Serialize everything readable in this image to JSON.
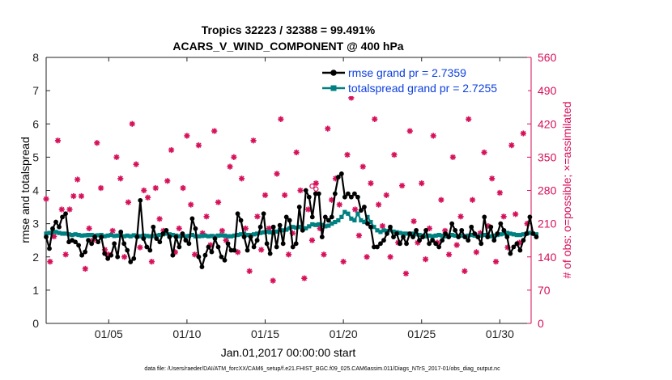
{
  "chart_data": {
    "type": "line",
    "title": "Tropics 32223 / 32388 = 99.491%",
    "subtitle": "ACARS_V_WIND_COMPONENT @ 400 hPa",
    "xlabel": "Jan.01,2017 00:00:00 start",
    "ylabel": "rmse and totalspread",
    "ylabel_right": "# of obs: o=possible; ×=assimilated",
    "footnote": "data file: /Users/raeder/DAI/ATM_forcXX/CAM6_setup/f.e21.FHIST_BGC.f09_025.CAM6assim.011/Diags_NTrS_2017-01/obs_diag_output.nc",
    "xlim": [
      1,
      32
    ],
    "ylim": [
      0,
      8
    ],
    "ylim_right": [
      0,
      560
    ],
    "x_ticks": [
      5,
      10,
      15,
      20,
      25,
      30
    ],
    "x_tick_labels": [
      "01/05",
      "01/10",
      "01/15",
      "01/20",
      "01/25",
      "01/30"
    ],
    "y_ticks": [
      0,
      1,
      2,
      3,
      4,
      5,
      6,
      7,
      8
    ],
    "y_tick_labels": [
      "0",
      "1",
      "2",
      "3",
      "4",
      "5",
      "6",
      "7",
      "8"
    ],
    "y_ticks_right": [
      0,
      70,
      140,
      210,
      280,
      350,
      420,
      490,
      560
    ],
    "y_tick_labels_right": [
      "0",
      "70",
      "140",
      "210",
      "280",
      "350",
      "420",
      "490",
      "560"
    ],
    "colors": {
      "rmse": "#000000",
      "spread": "#008080",
      "obs": "#d6105a",
      "legend_text": "#0d3fe0"
    },
    "series": [
      {
        "name": "rmse grand pr = 2.7359",
        "values": [
          2.6,
          2.25,
          2.85,
          3.05,
          2.9,
          3.2,
          3.3,
          2.45,
          2.5,
          2.45,
          2.35,
          2.05,
          2.15,
          2.5,
          2.4,
          2.6,
          2.45,
          2.6,
          2.1,
          1.95,
          2.05,
          2.4,
          2.0,
          2.75,
          2.4,
          2.2,
          1.85,
          1.95,
          2.6,
          3.7,
          2.55,
          2.3,
          2.2,
          2.9,
          2.55,
          2.45,
          2.7,
          2.8,
          2.6,
          2.05,
          2.6,
          2.3,
          2.7,
          2.5,
          2.4,
          3.15,
          2.85,
          2.0,
          1.7,
          2.05,
          2.3,
          2.15,
          2.55,
          2.3,
          2.0,
          1.9,
          2.4,
          2.2,
          2.2,
          3.3,
          3.1,
          2.6,
          2.2,
          2.6,
          2.3,
          2.5,
          2.9,
          3.3,
          2.4,
          2.1,
          2.9,
          2.3,
          2.95,
          2.4,
          3.2,
          3.1,
          2.3,
          2.4,
          3.5,
          2.8,
          4.0,
          3.8,
          3.2,
          3.9,
          3.9,
          2.6,
          3.2,
          3.1,
          3.2,
          3.9,
          4.4,
          4.5,
          3.8,
          3.9,
          3.8,
          3.9,
          3.8,
          3.4,
          3.5,
          3.0,
          2.9,
          2.3,
          2.3,
          2.4,
          2.5,
          2.7,
          2.9,
          2.6,
          2.7,
          2.4,
          2.6,
          2.4,
          2.7,
          2.6,
          2.8,
          2.5,
          2.6,
          2.8,
          2.4,
          2.5,
          2.4,
          2.3,
          2.5,
          2.7,
          2.6,
          3.0,
          2.8,
          2.6,
          2.8,
          2.6,
          2.5,
          2.9,
          2.7,
          2.6,
          2.4,
          3.2,
          2.6,
          2.9,
          2.5,
          2.7,
          3.0,
          2.8,
          2.6,
          2.1,
          2.3,
          2.4,
          2.2,
          2.5,
          2.7,
          3.2,
          2.7,
          2.6
        ]
      },
      {
        "name": "totalspread grand pr = 2.7255",
        "values": [
          2.7,
          2.72,
          2.74,
          2.75,
          2.72,
          2.7,
          2.7,
          2.68,
          2.66,
          2.68,
          2.66,
          2.64,
          2.65,
          2.66,
          2.66,
          2.64,
          2.65,
          2.66,
          2.62,
          2.64,
          2.66,
          2.63,
          2.64,
          2.66,
          2.62,
          2.64,
          2.62,
          2.65,
          2.63,
          2.62,
          2.64,
          2.63,
          2.62,
          2.63,
          2.64,
          2.66,
          2.68,
          2.7,
          2.68,
          2.66,
          2.64,
          2.62,
          2.64,
          2.62,
          2.63,
          2.66,
          2.62,
          2.62,
          2.63,
          2.64,
          2.62,
          2.63,
          2.62,
          2.64,
          2.65,
          2.64,
          2.62,
          2.62,
          2.64,
          2.66,
          2.68,
          2.7,
          2.66,
          2.66,
          2.68,
          2.7,
          2.72,
          2.74,
          2.76,
          2.74,
          2.72,
          2.76,
          2.82,
          2.8,
          2.82,
          2.86,
          2.9,
          2.88,
          2.9,
          2.86,
          2.86,
          2.92,
          2.98,
          2.96,
          2.98,
          2.96,
          2.92,
          2.94,
          3.0,
          3.05,
          3.1,
          3.2,
          3.35,
          3.3,
          3.15,
          3.1,
          3.3,
          3.1,
          3.05,
          3.2,
          3.05,
          2.9,
          2.8,
          2.75,
          2.8,
          2.78,
          2.8,
          2.76,
          2.74,
          2.72,
          2.7,
          2.7,
          2.68,
          2.7,
          2.68,
          2.66,
          2.64,
          2.62,
          2.64,
          2.62,
          2.64,
          2.66,
          2.64,
          2.62,
          2.64,
          2.66,
          2.64,
          2.62,
          2.64,
          2.62,
          2.64,
          2.66,
          2.64,
          2.62,
          2.64,
          2.66,
          2.64,
          2.62,
          2.64,
          2.66,
          2.68,
          2.7,
          2.72,
          2.7,
          2.68,
          2.66,
          2.66,
          2.68,
          2.7,
          2.72,
          2.7,
          2.68
        ]
      }
    ],
    "x_start": 1,
    "x_step": 0.2075,
    "obs_count": [
      [
        1.0,
        262
      ],
      [
        1.25,
        130
      ],
      [
        1.5,
        183
      ],
      [
        1.75,
        385
      ],
      [
        2.0,
        240
      ],
      [
        2.25,
        145
      ],
      [
        2.5,
        240
      ],
      [
        2.75,
        268
      ],
      [
        3.0,
        303
      ],
      [
        3.25,
        268
      ],
      [
        3.5,
        115
      ],
      [
        3.75,
        200
      ],
      [
        4.0,
        175
      ],
      [
        4.25,
        380
      ],
      [
        4.5,
        285
      ],
      [
        4.75,
        155
      ],
      [
        5.0,
        145
      ],
      [
        5.25,
        195
      ],
      [
        5.5,
        350
      ],
      [
        5.75,
        305
      ],
      [
        6.0,
        140
      ],
      [
        6.25,
        255
      ],
      [
        6.5,
        420
      ],
      [
        6.75,
        335
      ],
      [
        7.0,
        160
      ],
      [
        7.25,
        280
      ],
      [
        7.5,
        265
      ],
      [
        7.75,
        130
      ],
      [
        8.0,
        285
      ],
      [
        8.25,
        220
      ],
      [
        8.5,
        195
      ],
      [
        8.75,
        300
      ],
      [
        9.0,
        365
      ],
      [
        9.25,
        150
      ],
      [
        9.5,
        200
      ],
      [
        9.75,
        285
      ],
      [
        10.0,
        395
      ],
      [
        10.25,
        250
      ],
      [
        10.5,
        145
      ],
      [
        10.75,
        375
      ],
      [
        11.0,
        190
      ],
      [
        11.25,
        225
      ],
      [
        11.5,
        165
      ],
      [
        11.75,
        405
      ],
      [
        12.0,
        255
      ],
      [
        12.25,
        195
      ],
      [
        12.5,
        175
      ],
      [
        12.75,
        330
      ],
      [
        13.0,
        350
      ],
      [
        13.25,
        150
      ],
      [
        13.5,
        305
      ],
      [
        13.75,
        200
      ],
      [
        14.0,
        110
      ],
      [
        14.25,
        385
      ],
      [
        14.5,
        225
      ],
      [
        14.75,
        155
      ],
      [
        15.0,
        270
      ],
      [
        15.25,
        200
      ],
      [
        15.5,
        90
      ],
      [
        15.75,
        315
      ],
      [
        16.0,
        430
      ],
      [
        16.25,
        270
      ],
      [
        16.5,
        145
      ],
      [
        16.75,
        190
      ],
      [
        17.0,
        360
      ],
      [
        17.25,
        280
      ],
      [
        17.5,
        95
      ],
      [
        17.75,
        240
      ],
      [
        18.0,
        175
      ],
      [
        18.25,
        295
      ],
      [
        18.5,
        200
      ],
      [
        18.75,
        145
      ],
      [
        19.0,
        410
      ],
      [
        19.25,
        260
      ],
      [
        19.5,
        305
      ],
      [
        19.75,
        250
      ],
      [
        20.0,
        130
      ],
      [
        20.25,
        355
      ],
      [
        20.5,
        475
      ],
      [
        20.75,
        240
      ],
      [
        21.0,
        185
      ],
      [
        21.25,
        330
      ],
      [
        21.5,
        140
      ],
      [
        21.75,
        295
      ],
      [
        22.0,
        430
      ],
      [
        22.25,
        250
      ],
      [
        22.5,
        205
      ],
      [
        22.75,
        270
      ],
      [
        23.0,
        140
      ],
      [
        23.25,
        355
      ],
      [
        23.5,
        170
      ],
      [
        23.75,
        290
      ],
      [
        24.0,
        105
      ],
      [
        24.25,
        405
      ],
      [
        24.5,
        215
      ],
      [
        24.75,
        170
      ],
      [
        25.0,
        295
      ],
      [
        25.25,
        135
      ],
      [
        25.5,
        200
      ],
      [
        25.75,
        395
      ],
      [
        26.0,
        170
      ],
      [
        26.25,
        260
      ],
      [
        26.5,
        195
      ],
      [
        26.75,
        145
      ],
      [
        27.0,
        350
      ],
      [
        27.25,
        165
      ],
      [
        27.5,
        225
      ],
      [
        27.75,
        110
      ],
      [
        28.0,
        430
      ],
      [
        28.25,
        260
      ],
      [
        28.5,
        150
      ],
      [
        28.75,
        190
      ],
      [
        29.0,
        360
      ],
      [
        29.25,
        205
      ],
      [
        29.5,
        305
      ],
      [
        29.75,
        130
      ],
      [
        30.0,
        275
      ],
      [
        30.25,
        225
      ],
      [
        30.5,
        160
      ],
      [
        30.75,
        375
      ],
      [
        31.0,
        230
      ],
      [
        31.25,
        170
      ],
      [
        31.5,
        400
      ],
      [
        31.75,
        210
      ]
    ],
    "possible_outliers": [
      [
        18.0,
        289
      ],
      [
        18.25,
        283
      ]
    ]
  }
}
